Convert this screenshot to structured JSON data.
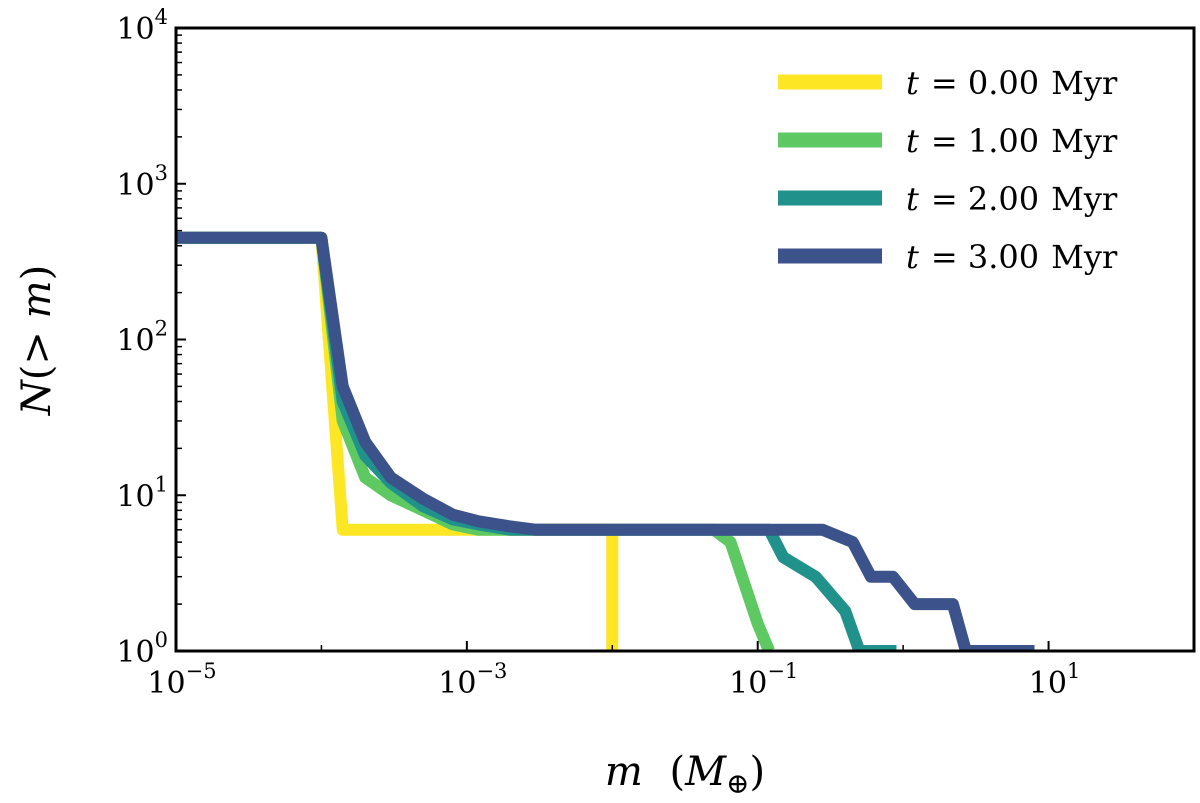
{
  "chart_data": {
    "type": "line",
    "title": "",
    "xscale": "log",
    "yscale": "log",
    "xlim": [
      1e-05,
      100
    ],
    "ylim": [
      1,
      10000
    ],
    "xlabel": {
      "var": "m",
      "unit_open": "(",
      "unit_sym": "M",
      "unit_sub": "⊕",
      "unit_close": ")"
    },
    "ylabel": {
      "var": "N",
      "open": "(",
      "rel": "> ",
      "var2": "m",
      "close": ")"
    },
    "xticks": [
      {
        "value": 1e-05,
        "base": "10",
        "exp": "−5"
      },
      {
        "value": 0.001,
        "base": "10",
        "exp": "−3"
      },
      {
        "value": 0.1,
        "base": "10",
        "exp": "−1"
      },
      {
        "value": 10,
        "base": "10",
        "exp": "1"
      }
    ],
    "yticks": [
      {
        "value": 1,
        "base": "10",
        "exp": "0"
      },
      {
        "value": 10,
        "base": "10",
        "exp": "1"
      },
      {
        "value": 100,
        "base": "10",
        "exp": "2"
      },
      {
        "value": 1000,
        "base": "10",
        "exp": "3"
      },
      {
        "value": 10000,
        "base": "10",
        "exp": "4"
      }
    ],
    "legend_position": "top-right",
    "series": [
      {
        "name": "t = 0.00 Myr",
        "label_var": "t",
        "label_eq": "= 0.00",
        "label_unit": "Myr",
        "color": "#fde725",
        "x": [
          1e-05,
          0.0001,
          0.00014,
          0.001,
          0.003,
          0.01,
          0.01
        ],
        "y": [
          450,
          450,
          6,
          6,
          6,
          6,
          1
        ]
      },
      {
        "name": "t = 1.00 Myr",
        "label_var": "t",
        "label_eq": "= 1.00",
        "label_unit": "Myr",
        "color": "#5ec962",
        "x": [
          1e-05,
          0.0001,
          0.00014,
          0.0002,
          0.0003,
          0.0005,
          0.0008,
          0.0012,
          0.002,
          0.003,
          0.01,
          0.05,
          0.065,
          0.1,
          0.12
        ],
        "y": [
          450,
          450,
          30,
          13,
          10,
          8,
          6.5,
          6,
          6,
          6,
          6,
          6,
          5,
          1.5,
          1
        ]
      },
      {
        "name": "t = 2.00 Myr",
        "label_var": "t",
        "label_eq": "= 2.00",
        "label_unit": "Myr",
        "color": "#21918c",
        "x": [
          1e-05,
          0.0001,
          0.00014,
          0.0002,
          0.0003,
          0.0005,
          0.0008,
          0.0012,
          0.002,
          0.003,
          0.01,
          0.05,
          0.12,
          0.15,
          0.25,
          0.4,
          0.5,
          0.9
        ],
        "y": [
          450,
          450,
          40,
          18,
          12,
          8.5,
          7,
          6.5,
          6,
          6,
          6,
          6,
          6,
          4,
          3,
          1.8,
          1,
          1
        ]
      },
      {
        "name": "t = 3.00 Myr",
        "label_var": "t",
        "label_eq": "= 3.00",
        "label_unit": "Myr",
        "color": "#3b528b",
        "x": [
          1e-05,
          0.0001,
          0.00014,
          0.0002,
          0.0003,
          0.0005,
          0.0008,
          0.0012,
          0.002,
          0.003,
          0.01,
          0.1,
          0.28,
          0.45,
          0.6,
          0.85,
          1.2,
          1.5,
          2.2,
          2.7,
          3.0,
          8.0
        ],
        "y": [
          450,
          450,
          50,
          22,
          13,
          9.5,
          7.5,
          6.8,
          6.3,
          6,
          6,
          6,
          6,
          5,
          3,
          3,
          2,
          2,
          2,
          1,
          1,
          1
        ]
      }
    ]
  }
}
